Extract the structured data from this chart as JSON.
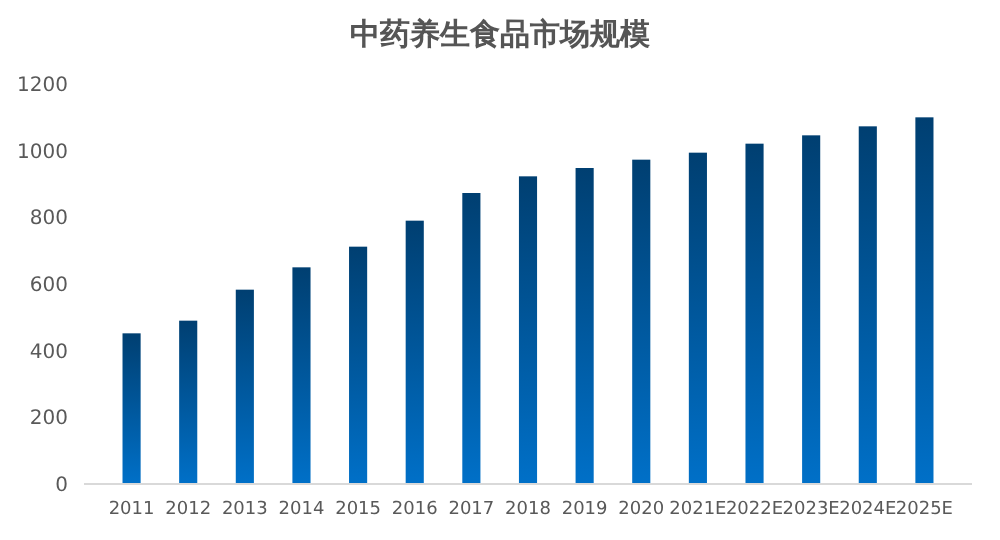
{
  "chart_data": {
    "type": "bar",
    "title": "中药养生食品市场规模",
    "categories": [
      "2011",
      "2012",
      "2013",
      "2014",
      "2015",
      "2016",
      "2017",
      "2018",
      "2019",
      "2020",
      "2021E",
      "2022E",
      "2023E",
      "2024E",
      "2025E"
    ],
    "values": [
      452,
      490,
      583,
      650,
      712,
      790,
      873,
      923,
      948,
      973,
      994,
      1021,
      1046,
      1073,
      1100
    ],
    "color": "#0070c8",
    "ylim": [
      0,
      1200
    ],
    "yticks": [
      0,
      200,
      400,
      600,
      800,
      1000,
      1200
    ],
    "grid": false
  }
}
